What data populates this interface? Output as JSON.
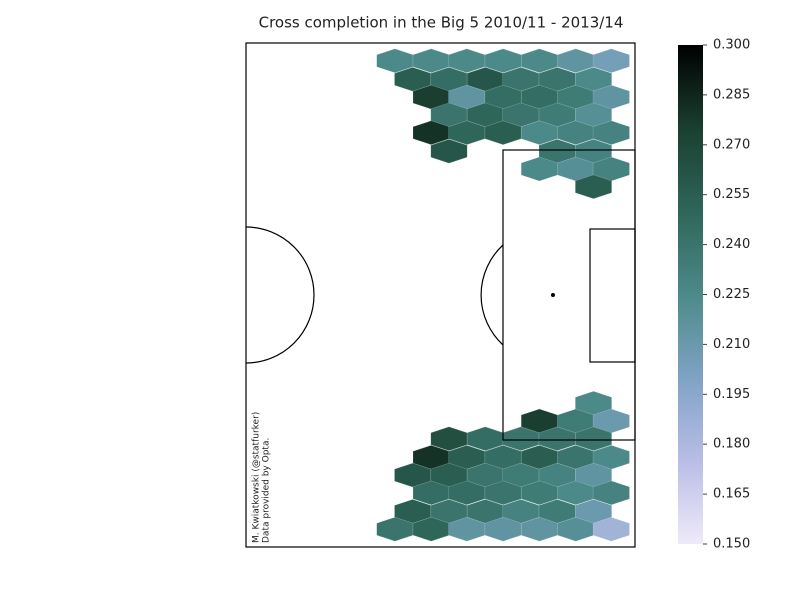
{
  "chart_data": {
    "type": "hexbin",
    "title": "Cross completion in the Big 5 2010/11 - 2013/14",
    "annotations": [
      "M. Kwiatkowski (@statfurker)",
      "Data provided by Opta."
    ],
    "xlim": [
      52.5,
      105
    ],
    "ylim": [
      0,
      68
    ],
    "x": [
      72.6,
      77.5,
      82.3,
      87.2,
      92.1,
      97.0,
      101.8,
      75.0,
      79.9,
      84.8,
      89.6,
      94.5,
      99.4,
      77.5,
      82.3,
      87.2,
      92.1,
      97.0,
      101.8,
      79.9,
      84.8,
      89.6,
      94.5,
      99.4,
      77.5,
      82.3,
      87.2,
      92.1,
      97.0,
      101.8,
      79.9,
      94.5,
      99.4,
      92.1,
      97.0,
      101.8,
      99.4,
      99.4,
      92.1,
      97.0,
      101.8,
      79.9,
      84.8,
      89.6,
      94.5,
      99.4,
      77.5,
      82.3,
      87.2,
      92.1,
      97.0,
      101.8,
      75.0,
      79.9,
      84.8,
      89.6,
      94.5,
      99.4,
      77.5,
      82.3,
      87.2,
      92.1,
      97.0,
      101.8,
      75.0,
      79.9,
      84.8,
      89.6,
      94.5,
      99.4,
      72.6,
      77.5,
      82.3,
      87.2,
      92.1,
      97.0,
      101.8
    ],
    "y": [
      65.6,
      65.6,
      65.6,
      65.6,
      65.6,
      65.6,
      65.6,
      63.1,
      63.1,
      63.1,
      63.1,
      63.1,
      63.1,
      60.7,
      60.7,
      60.7,
      60.7,
      60.7,
      60.7,
      58.3,
      58.3,
      58.3,
      58.3,
      58.3,
      55.9,
      55.9,
      55.9,
      55.9,
      55.9,
      55.9,
      53.4,
      53.4,
      53.4,
      51.0,
      51.0,
      51.0,
      48.6,
      19.4,
      17.0,
      17.0,
      17.0,
      14.6,
      14.6,
      14.6,
      14.6,
      14.6,
      12.1,
      12.1,
      12.1,
      12.1,
      12.1,
      12.1,
      9.7,
      9.7,
      9.7,
      9.7,
      9.7,
      9.7,
      7.3,
      7.3,
      7.3,
      7.3,
      7.3,
      7.3,
      4.8,
      4.8,
      4.8,
      4.8,
      4.8,
      4.8,
      2.4,
      2.4,
      2.4,
      2.4,
      2.4,
      2.4,
      2.4
    ],
    "values": [
      0.225,
      0.225,
      0.225,
      0.225,
      0.225,
      0.215,
      0.205,
      0.255,
      0.245,
      0.26,
      0.24,
      0.24,
      0.225,
      0.275,
      0.215,
      0.245,
      0.245,
      0.235,
      0.215,
      0.24,
      0.25,
      0.24,
      0.235,
      0.22,
      0.28,
      0.25,
      0.255,
      0.225,
      0.23,
      0.23,
      0.26,
      0.24,
      0.23,
      0.225,
      0.22,
      0.23,
      0.255,
      0.225,
      0.275,
      0.235,
      0.21,
      0.265,
      0.245,
      0.24,
      0.24,
      0.24,
      0.28,
      0.255,
      0.245,
      0.255,
      0.24,
      0.225,
      0.26,
      0.255,
      0.24,
      0.235,
      0.23,
      0.215,
      0.245,
      0.245,
      0.24,
      0.235,
      0.225,
      0.23,
      0.255,
      0.24,
      0.24,
      0.23,
      0.235,
      0.21,
      0.24,
      0.25,
      0.215,
      0.215,
      0.215,
      0.22,
      0.185
    ],
    "colormap": [
      "#efeafa",
      "#b9bde6",
      "#7fa3c4",
      "#4c8a8a",
      "#2e6659",
      "#1a3f30",
      "#000000"
    ],
    "clim": [
      0.15,
      0.3
    ],
    "cticks": [
      {
        "value": 0.15,
        "label": "0.150"
      },
      {
        "value": 0.165,
        "label": "0.165"
      },
      {
        "value": 0.18,
        "label": "0.180"
      },
      {
        "value": 0.195,
        "label": "0.195"
      },
      {
        "value": 0.21,
        "label": "0.210"
      },
      {
        "value": 0.225,
        "label": "0.225"
      },
      {
        "value": 0.24,
        "label": "0.240"
      },
      {
        "value": 0.255,
        "label": "0.255"
      },
      {
        "value": 0.27,
        "label": "0.270"
      },
      {
        "value": 0.285,
        "label": "0.285"
      },
      {
        "value": 0.3,
        "label": "0.300"
      }
    ]
  }
}
